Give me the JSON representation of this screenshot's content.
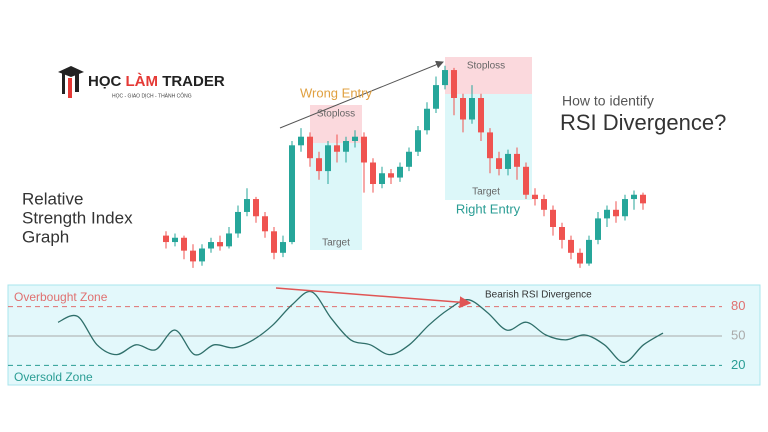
{
  "logo": {
    "parts": [
      "HỌC",
      "LÀM",
      "TRADER"
    ],
    "tagline": "HỌC - GIAO DỊCH - THÀNH CÔNG"
  },
  "heading": [
    "Relative",
    "Strength Index",
    "Graph"
  ],
  "chart_data": [
    {
      "type": "candlestick",
      "subtitle": "How to identify",
      "title": "RSI Divergence?",
      "open": [
        16,
        13,
        15,
        9,
        4,
        10,
        13,
        11,
        17,
        27,
        33,
        25,
        18,
        8,
        13,
        58,
        62,
        52,
        46,
        58,
        55,
        60,
        62,
        50,
        40,
        45,
        43,
        48,
        55,
        65,
        75,
        86,
        93,
        80,
        70,
        80,
        64,
        52,
        47,
        54,
        48,
        35,
        33,
        28,
        20,
        14,
        8,
        3,
        14,
        24,
        28,
        25,
        33,
        35
      ],
      "close": [
        13,
        15,
        9,
        4,
        10,
        13,
        11,
        17,
        27,
        33,
        25,
        18,
        8,
        13,
        58,
        62,
        52,
        46,
        58,
        55,
        60,
        62,
        50,
        40,
        45,
        43,
        48,
        55,
        65,
        75,
        86,
        93,
        80,
        70,
        80,
        64,
        52,
        47,
        54,
        48,
        35,
        33,
        28,
        20,
        14,
        8,
        3,
        14,
        24,
        28,
        25,
        33,
        35,
        31
      ],
      "high": [
        18,
        17,
        16,
        12,
        12,
        15,
        16,
        20,
        30,
        38,
        34,
        27,
        20,
        16,
        60,
        66,
        64,
        55,
        60,
        63,
        62,
        65,
        64,
        52,
        48,
        47,
        50,
        57,
        67,
        78,
        90,
        95,
        94,
        82,
        86,
        82,
        66,
        55,
        56,
        57,
        50,
        38,
        35,
        30,
        22,
        16,
        10,
        16,
        27,
        30,
        32,
        35,
        37,
        36
      ],
      "low": [
        10,
        11,
        5,
        1,
        2,
        8,
        9,
        10,
        15,
        25,
        22,
        15,
        5,
        6,
        12,
        55,
        48,
        42,
        40,
        50,
        50,
        57,
        36,
        36,
        38,
        40,
        41,
        46,
        53,
        63,
        73,
        84,
        72,
        64,
        68,
        60,
        45,
        44,
        44,
        42,
        33,
        30,
        25,
        16,
        10,
        5,
        1,
        2,
        12,
        20,
        22,
        23,
        28,
        28
      ],
      "up_color": "#26a69a",
      "down_color": "#ef5350",
      "ylim": [
        0,
        100
      ],
      "annotations": {
        "wrong_entry": "Wrong Entry",
        "right_entry": "Right Entry",
        "stoploss": [
          "Stoploss",
          "Stoploss"
        ],
        "target": [
          "Target",
          "Target"
        ]
      }
    },
    {
      "type": "line",
      "name": "RSI",
      "color": "#2f6f6a",
      "values": [
        64,
        70,
        41,
        31,
        41,
        36,
        56,
        31,
        41,
        38,
        46,
        61,
        82,
        95,
        68,
        46,
        41,
        31,
        41,
        61,
        77,
        87,
        74,
        56,
        64,
        51,
        46,
        51,
        41,
        23,
        41,
        53
      ],
      "ylim": [
        0,
        102
      ],
      "yticks": [
        20,
        50,
        80
      ],
      "zones": {
        "overbought": "Overbought Zone",
        "oversold": "Oversold Zone"
      },
      "annotation": "Bearish RSI Divergence"
    }
  ]
}
